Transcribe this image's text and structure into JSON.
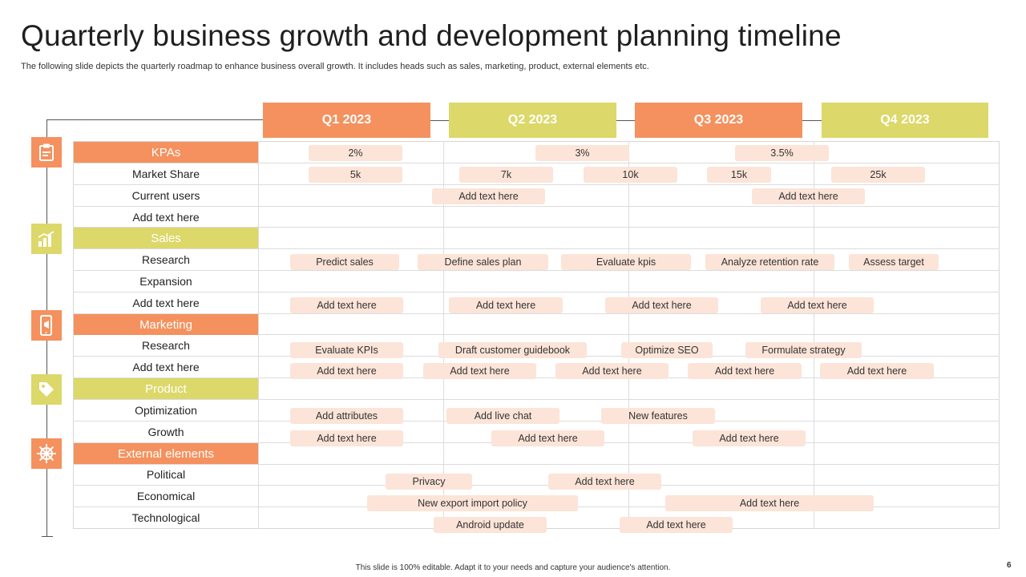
{
  "title": "Quarterly business growth and development planning timeline",
  "subtitle": "The following slide depicts the quarterly roadmap to enhance business overall growth. It includes heads such as sales, marketing, product, external elements etc.",
  "colors": {
    "orange": "#f4915e",
    "yellow": "#dcd86a",
    "pill": "#fce4d8"
  },
  "quarters": [
    "Q1 2023",
    "Q2 2023",
    "Q3 2023",
    "Q4 2023"
  ],
  "rows": {
    "kpas": "KPAs",
    "market_share": "Market Share",
    "current_users": "Current users",
    "kpa_add": "Add text here",
    "sales": "Sales",
    "sales_research": "Research",
    "expansion": "Expansion",
    "sales_add": "Add text here",
    "marketing": "Marketing",
    "marketing_research": "Research",
    "marketing_add": "Add text here",
    "product": "Product",
    "optimization": "Optimization",
    "growth": "Growth",
    "external": "External elements",
    "political": "Political",
    "economical": "Economical",
    "technological": "Technological"
  },
  "icons": [
    "clipboard-icon",
    "bar-chart-icon",
    "mobile-megaphone-icon",
    "tag-icon",
    "ship-wheel-icon"
  ],
  "pills": {
    "kpa1": "2%",
    "kpa2": "3%",
    "kpa3": "3.5%",
    "ms1": "5k",
    "ms2": "7k",
    "ms3": "10k",
    "ms4": "15k",
    "ms5": "25k",
    "cu1": "Add text here",
    "cu2": "Add text here",
    "sr1": "Predict sales",
    "sr2": "Define sales plan",
    "sr3": "Evaluate kpis",
    "sr4": "Analyze retention rate",
    "sr5": "Assess target",
    "sa1": "Add text here",
    "sa2": "Add text here",
    "sa3": "Add text here",
    "sa4": "Add text here",
    "mr1": "Evaluate KPIs",
    "mr2": "Draft customer guidebook",
    "mr3": "Optimize SEO",
    "mr4": "Formulate strategy",
    "ma1": "Add text here",
    "ma2": "Add text here",
    "ma3": "Add text here",
    "ma4": "Add text here",
    "ma5": "Add text here",
    "po1": "Add attributes",
    "po2": "Add live chat",
    "po3": "New features",
    "pg1": "Add text here",
    "pg2": "Add text here",
    "pg3": "Add text here",
    "ep1": "Privacy",
    "ep2": "Add text here",
    "ee1": "New export import policy",
    "ee2": "Add text here",
    "et1": "Android update",
    "et2": "Add text here"
  },
  "footer": "This slide is 100% editable. Adapt it to your needs and capture your audience's attention.",
  "page_number": "6"
}
